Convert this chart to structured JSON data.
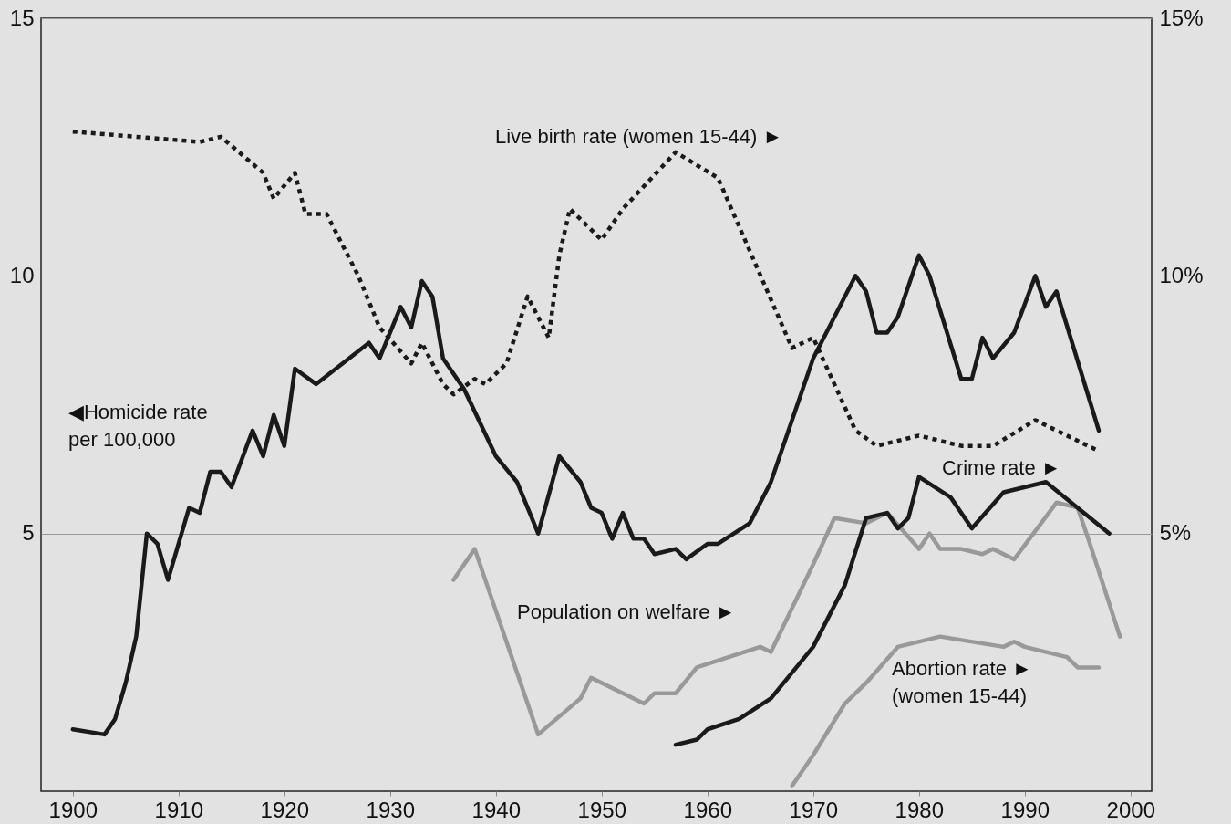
{
  "chart_data": {
    "type": "line",
    "xlim": [
      1897,
      2002
    ],
    "xticks": [
      1900,
      1910,
      1920,
      1930,
      1940,
      1950,
      1960,
      1970,
      1980,
      1990,
      2000
    ],
    "ylim": [
      0,
      15
    ],
    "yticks": [
      5,
      10,
      15
    ],
    "y2lim": [
      0,
      15
    ],
    "y2ticks": [
      {
        "value": 5,
        "label": "5%"
      },
      {
        "value": 10,
        "label": "10%"
      },
      {
        "value": 15,
        "label": "15%"
      }
    ],
    "grid": "y",
    "series": [
      {
        "name": "◀Homicide rate per 100,000",
        "color": "#1a1a1a",
        "line_style": "solid",
        "x": [
          1900,
          1903,
          1904,
          1905,
          1906,
          1907,
          1908,
          1909,
          1911,
          1912,
          1913,
          1914,
          1915,
          1917,
          1918,
          1919,
          1920,
          1921,
          1923,
          1928,
          1929,
          1931,
          1932,
          1933,
          1934,
          1935,
          1937,
          1940,
          1942,
          1944,
          1946,
          1948,
          1949,
          1950,
          1951,
          1952,
          1953,
          1954,
          1955,
          1957,
          1958,
          1960,
          1961,
          1964,
          1966,
          1968,
          1970,
          1974,
          1975,
          1976,
          1977,
          1978,
          1980,
          1981,
          1984,
          1985,
          1986,
          1987,
          1989,
          1991,
          1992,
          1993,
          1997
        ],
        "values": [
          1.2,
          1.1,
          1.4,
          2.1,
          3.0,
          5.0,
          4.8,
          4.1,
          5.5,
          5.4,
          6.2,
          6.2,
          5.9,
          7.0,
          6.5,
          7.3,
          6.7,
          8.2,
          7.9,
          8.7,
          8.4,
          9.4,
          9.0,
          9.9,
          9.6,
          8.4,
          7.8,
          6.5,
          6.0,
          5.0,
          6.5,
          6.0,
          5.5,
          5.4,
          4.9,
          5.4,
          4.9,
          4.9,
          4.6,
          4.7,
          4.5,
          4.8,
          4.8,
          5.2,
          6.0,
          7.2,
          8.4,
          10.0,
          9.7,
          8.9,
          8.9,
          9.2,
          10.4,
          10.0,
          8.0,
          8.0,
          8.8,
          8.4,
          8.9,
          10.0,
          9.4,
          9.7,
          7.0
        ]
      },
      {
        "name": "Live birth rate (women 15-44) ►",
        "color": "#1a1a1a",
        "line_style": "dotted",
        "x": [
          1900,
          1912,
          1914,
          1918,
          1919,
          1921,
          1922,
          1924,
          1927,
          1929,
          1932,
          1933,
          1934,
          1935,
          1936,
          1938,
          1939,
          1941,
          1943,
          1945,
          1946,
          1947,
          1950,
          1952,
          1957,
          1961,
          1968,
          1970,
          1974,
          1976,
          1980,
          1984,
          1987,
          1991,
          1997
        ],
        "values": [
          12.8,
          12.6,
          12.7,
          12.0,
          11.5,
          12.0,
          11.2,
          11.2,
          10.0,
          9.0,
          8.3,
          8.7,
          8.3,
          7.9,
          7.7,
          8.0,
          7.9,
          8.3,
          9.6,
          8.8,
          10.4,
          11.3,
          10.7,
          11.3,
          12.4,
          11.9,
          8.6,
          8.8,
          7.0,
          6.7,
          6.9,
          6.7,
          6.7,
          7.2,
          6.6
        ]
      },
      {
        "name": "Population on welfare ►",
        "color": "#999999",
        "line_style": "solid",
        "x": [
          1936,
          1938,
          1944,
          1948,
          1949,
          1954,
          1955,
          1957,
          1959,
          1965,
          1966,
          1970,
          1972,
          1975,
          1977,
          1980,
          1981,
          1982,
          1984,
          1986,
          1987,
          1989,
          1993,
          1995,
          1996,
          1999
        ],
        "values": [
          4.1,
          4.7,
          1.1,
          1.8,
          2.2,
          1.7,
          1.9,
          1.9,
          2.4,
          2.8,
          2.7,
          4.4,
          5.3,
          5.2,
          5.4,
          4.7,
          5.0,
          4.7,
          4.7,
          4.6,
          4.7,
          4.5,
          5.6,
          5.5,
          4.9,
          3.0
        ]
      },
      {
        "name": "Crime rate ►",
        "color": "#1a1a1a",
        "line_style": "solid",
        "x": [
          1957,
          1959,
          1960,
          1963,
          1966,
          1970,
          1973,
          1975,
          1977,
          1978,
          1979,
          1980,
          1983,
          1985,
          1988,
          1992,
          1995,
          1998
        ],
        "values": [
          0.9,
          1.0,
          1.2,
          1.4,
          1.8,
          2.8,
          4.0,
          5.3,
          5.4,
          5.1,
          5.3,
          6.1,
          5.7,
          5.1,
          5.8,
          6.0,
          5.5,
          5.0
        ]
      },
      {
        "name": "Abortion rate ► (women 15-44)",
        "color": "#999999",
        "line_style": "solid",
        "x": [
          1968,
          1970,
          1973,
          1975,
          1978,
          1982,
          1988,
          1989,
          1990,
          1994,
          1995,
          1997
        ],
        "values": [
          0.1,
          0.7,
          1.7,
          2.1,
          2.8,
          3.0,
          2.8,
          2.9,
          2.8,
          2.6,
          2.4,
          2.4
        ]
      }
    ]
  }
}
